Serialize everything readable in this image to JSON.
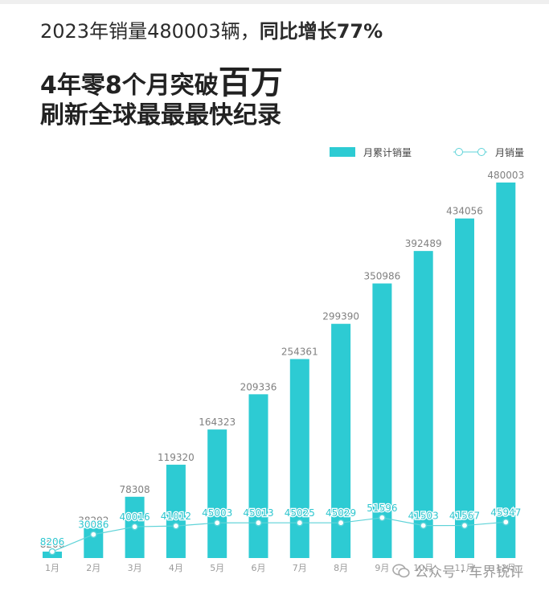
{
  "headline": {
    "line1_prefix": "2023年销量480003辆，",
    "line1_bold": "同比增长77%",
    "line2_prefix": "4年零8个月突破",
    "line2_big": "百万",
    "line3": "刷新全球最最最快纪录"
  },
  "watermark": {
    "text": "公众号 · 车界锐评",
    "icon": "wechat-icon"
  },
  "colors": {
    "bar": "#2dcbd3",
    "line": "#5fd3d8",
    "bar_label": "#808080",
    "line_label": "#2ec6cf",
    "axis_label": "#9a9a9a"
  },
  "chart_data": {
    "type": "bar",
    "categories": [
      "1月",
      "2月",
      "3月",
      "4月",
      "5月",
      "6月",
      "7月",
      "8月",
      "9月",
      "10月",
      "11月",
      "12月"
    ],
    "series": [
      {
        "name": "月累计销量",
        "type": "bar",
        "values": [
          8206,
          38292,
          78308,
          119320,
          164323,
          209336,
          254361,
          299390,
          350986,
          392489,
          434056,
          480003
        ]
      },
      {
        "name": "月销量",
        "type": "line",
        "values": [
          8206,
          30086,
          40016,
          41012,
          45003,
          45013,
          45025,
          45029,
          51596,
          41503,
          41567,
          45947
        ]
      }
    ],
    "ylim": [
      0,
      500000
    ],
    "grid": false,
    "legend": "top-right"
  }
}
